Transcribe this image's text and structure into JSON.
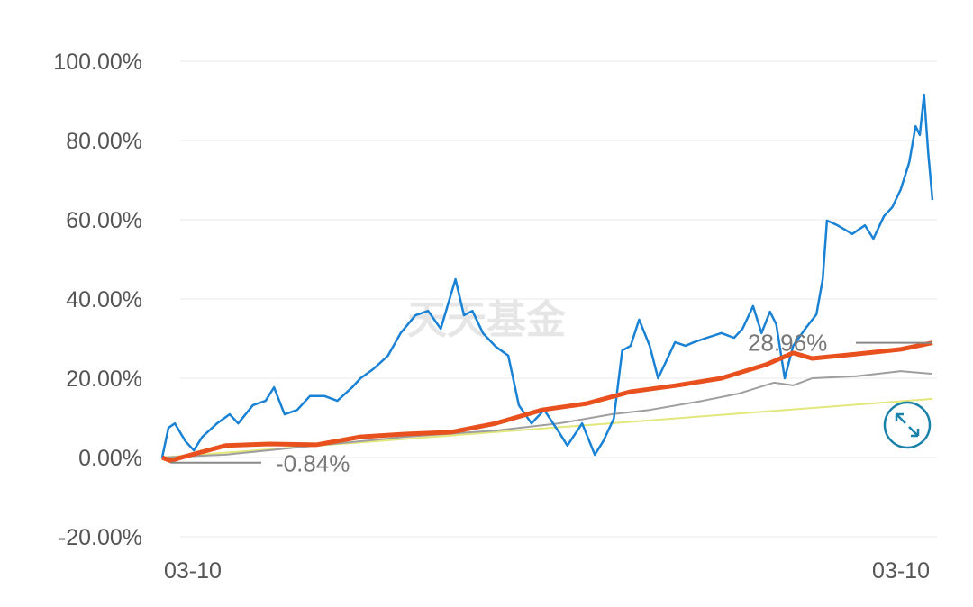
{
  "chart_data": {
    "type": "line",
    "title": "",
    "xlabel": "",
    "ylabel": "",
    "x_unit": "days from start (estimated)",
    "xlim": [
      0,
      365
    ],
    "ylim": [
      -20,
      100
    ],
    "y_ticks": [
      "100.00%",
      "80.00%",
      "60.00%",
      "40.00%",
      "20.00%",
      "0.00%",
      "-20.00%"
    ],
    "y_tick_values": [
      100,
      80,
      60,
      40,
      20,
      0,
      -20
    ],
    "x_tick_labels": [
      "03-10",
      "03-10"
    ],
    "grid": true,
    "watermark": "天天基金",
    "annotations": [
      {
        "text": "-0.84%",
        "series": 1,
        "x": 4,
        "y": -0.84
      },
      {
        "text": "28.96%",
        "series": 1,
        "x": 365,
        "y": 28.96
      }
    ],
    "series": [
      {
        "color": "#1a82d4",
        "points": [
          [
            0,
            0
          ],
          [
            3,
            7.5
          ],
          [
            6,
            8.6
          ],
          [
            11,
            4.1
          ],
          [
            15,
            1.8
          ],
          [
            19,
            5.2
          ],
          [
            26,
            8.6
          ],
          [
            32,
            10.9
          ],
          [
            36,
            8.6
          ],
          [
            43,
            13.2
          ],
          [
            49,
            14.3
          ],
          [
            53,
            17.7
          ],
          [
            58,
            10.9
          ],
          [
            64,
            12.0
          ],
          [
            70,
            15.5
          ],
          [
            77,
            15.5
          ],
          [
            83,
            14.3
          ],
          [
            90,
            17.7
          ],
          [
            94,
            20.0
          ],
          [
            100,
            22.3
          ],
          [
            107,
            25.7
          ],
          [
            113,
            31.4
          ],
          [
            120,
            35.9
          ],
          [
            126,
            37.0
          ],
          [
            132,
            32.5
          ],
          [
            139,
            45.0
          ],
          [
            143,
            35.9
          ],
          [
            147,
            37.0
          ],
          [
            152,
            31.4
          ],
          [
            158,
            28.0
          ],
          [
            164,
            25.7
          ],
          [
            169,
            13.2
          ],
          [
            175,
            8.6
          ],
          [
            181,
            12.0
          ],
          [
            188,
            6.4
          ],
          [
            192,
            3.0
          ],
          [
            199,
            8.6
          ],
          [
            205,
            0.7
          ],
          [
            209,
            4.1
          ],
          [
            214,
            9.8
          ],
          [
            218,
            27.0
          ],
          [
            222,
            28.2
          ],
          [
            226,
            34.8
          ],
          [
            231,
            28.2
          ],
          [
            235,
            20.0
          ],
          [
            239,
            24.5
          ],
          [
            243,
            29.1
          ],
          [
            248,
            28.2
          ],
          [
            252,
            29.1
          ],
          [
            258,
            30.2
          ],
          [
            265,
            31.4
          ],
          [
            271,
            30.2
          ],
          [
            275,
            32.5
          ],
          [
            280,
            38.2
          ],
          [
            284,
            31.4
          ],
          [
            288,
            36.8
          ],
          [
            291,
            33.6
          ],
          [
            295,
            20.0
          ],
          [
            299,
            28.2
          ],
          [
            305,
            32.7
          ],
          [
            310,
            36.1
          ],
          [
            313,
            45.0
          ],
          [
            315,
            59.8
          ],
          [
            320,
            58.6
          ],
          [
            327,
            56.4
          ],
          [
            333,
            58.6
          ],
          [
            337,
            55.2
          ],
          [
            342,
            60.9
          ],
          [
            346,
            63.2
          ],
          [
            350,
            67.7
          ],
          [
            354,
            74.5
          ],
          [
            357,
            83.6
          ],
          [
            359,
            81.4
          ],
          [
            361,
            91.6
          ],
          [
            363,
            76.8
          ],
          [
            365,
            65.0
          ]
        ]
      },
      {
        "color": "#e8501e",
        "points": [
          [
            0,
            0
          ],
          [
            4,
            -0.84
          ],
          [
            9,
            0
          ],
          [
            30,
            3.0
          ],
          [
            51,
            3.4
          ],
          [
            73,
            3.2
          ],
          [
            94,
            5.2
          ],
          [
            115,
            5.9
          ],
          [
            137,
            6.4
          ],
          [
            158,
            8.6
          ],
          [
            180,
            12.0
          ],
          [
            201,
            13.6
          ],
          [
            222,
            16.6
          ],
          [
            244,
            18.2
          ],
          [
            265,
            20.0
          ],
          [
            286,
            23.4
          ],
          [
            299,
            26.4
          ],
          [
            308,
            25.0
          ],
          [
            329,
            26.1
          ],
          [
            350,
            27.3
          ],
          [
            365,
            28.96
          ]
        ]
      },
      {
        "color": "#9e9e9e",
        "points": [
          [
            0,
            0
          ],
          [
            30,
            0.7
          ],
          [
            73,
            3.0
          ],
          [
            115,
            5.2
          ],
          [
            158,
            6.8
          ],
          [
            188,
            8.6
          ],
          [
            213,
            10.9
          ],
          [
            231,
            12.0
          ],
          [
            256,
            14.3
          ],
          [
            273,
            16.1
          ],
          [
            290,
            18.9
          ],
          [
            299,
            18.2
          ],
          [
            308,
            20.0
          ],
          [
            329,
            20.5
          ],
          [
            350,
            21.8
          ],
          [
            365,
            21.1
          ]
        ]
      },
      {
        "color": "#e3e67a",
        "points": [
          [
            0,
            0
          ],
          [
            365,
            14.8
          ]
        ]
      }
    ]
  },
  "controls": {
    "expand_icon": "expand-arrows-icon",
    "accent": "#1a82a8"
  }
}
